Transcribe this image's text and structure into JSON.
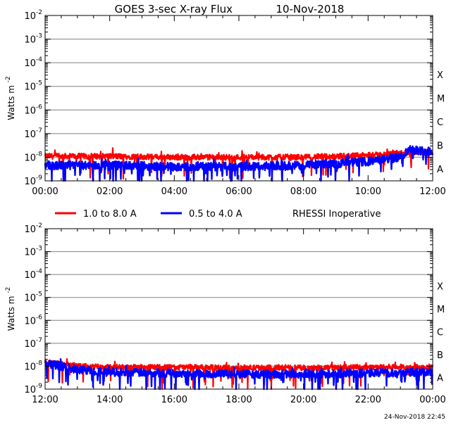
{
  "title": "GOES 3-sec X-ray Flux",
  "date": "10-Nov-2018",
  "ylabel": "Watts m",
  "ylabel_sup": "-2",
  "legend": {
    "series1": "1.0 to 8.0 A",
    "series2": "0.5 to 4.0 A",
    "note": "RHESSI Inoperative"
  },
  "footer": "24-Nov-2018 22:45",
  "colors": {
    "series1": "#ff0000",
    "series2": "#0000ff",
    "grid": "#808080",
    "axis": "#000000"
  },
  "chart_data": [
    {
      "type": "line",
      "name": "top-panel",
      "y_scale": "log",
      "ylim": [
        1e-09,
        0.01
      ],
      "xlim_hours": [
        0,
        12
      ],
      "x_tick_labels": [
        "00:00",
        "02:00",
        "04:00",
        "06:00",
        "08:00",
        "10:00",
        "12:00"
      ],
      "y_tick_exponents": [
        -2,
        -3,
        -4,
        -5,
        -6,
        -7,
        -8,
        -9
      ],
      "flare_classes": [
        {
          "label": "X",
          "exp": -4
        },
        {
          "label": "M",
          "exp": -5
        },
        {
          "label": "C",
          "exp": -6
        },
        {
          "label": "B",
          "exp": -7
        },
        {
          "label": "A",
          "exp": -8
        }
      ],
      "series": [
        {
          "name": "1.0 to 8.0 A",
          "color": "#ff0000",
          "x": [
            0,
            2,
            4,
            6,
            8,
            10,
            10.5,
            11,
            11.5,
            12
          ],
          "y": [
            1.1e-08,
            1.1e-08,
            1e-08,
            1e-08,
            1e-08,
            1.2e-08,
            1.3e-08,
            1.5e-08,
            1.7e-08,
            1.6e-08
          ]
        },
        {
          "name": "0.5 to 4.0 A",
          "color": "#0000ff",
          "x": [
            0,
            2,
            4,
            6,
            8,
            10,
            10.5,
            11,
            11.3,
            11.6,
            12
          ],
          "y": [
            4.5e-09,
            4.5e-09,
            4e-09,
            4e-09,
            4.5e-09,
            6.5e-09,
            8e-09,
            1e-08,
            2.3e-08,
            1.9e-08,
            1.8e-08
          ]
        }
      ]
    },
    {
      "type": "line",
      "name": "bottom-panel",
      "y_scale": "log",
      "ylim": [
        1e-09,
        0.01
      ],
      "xlim_hours": [
        12,
        24
      ],
      "x_tick_labels": [
        "12:00",
        "14:00",
        "16:00",
        "18:00",
        "20:00",
        "22:00",
        "00:00"
      ],
      "y_tick_exponents": [
        -2,
        -3,
        -4,
        -5,
        -6,
        -7,
        -8,
        -9
      ],
      "flare_classes": [
        {
          "label": "X",
          "exp": -4
        },
        {
          "label": "M",
          "exp": -5
        },
        {
          "label": "C",
          "exp": -6
        },
        {
          "label": "B",
          "exp": -7
        },
        {
          "label": "A",
          "exp": -8
        }
      ],
      "series": [
        {
          "name": "1.0 to 8.0 A",
          "color": "#ff0000",
          "x": [
            12,
            12.5,
            13,
            14,
            16,
            18,
            20,
            22,
            24
          ],
          "y": [
            1.5e-08,
            1.3e-08,
            1e-08,
            9e-09,
            9e-09,
            8.5e-09,
            8.5e-09,
            9e-09,
            9.5e-09
          ]
        },
        {
          "name": "0.5 to 4.0 A",
          "color": "#0000ff",
          "x": [
            12,
            12.5,
            13,
            14,
            16,
            18,
            20,
            22,
            24
          ],
          "y": [
            1.4e-08,
            1e-08,
            7e-09,
            5.5e-09,
            5e-09,
            4.5e-09,
            4.5e-09,
            5e-09,
            5.5e-09
          ]
        }
      ]
    }
  ]
}
